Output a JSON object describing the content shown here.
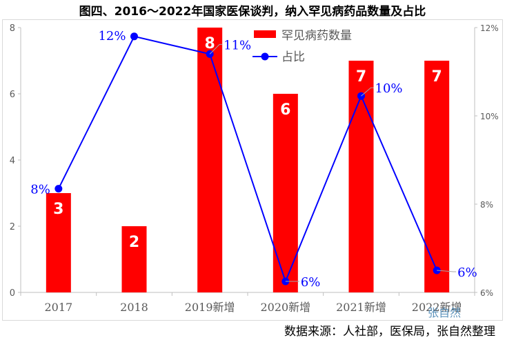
{
  "title": "图四、2016～2022年国家医保谈判，纳入罕见病药品数量及占比",
  "source": "数据来源：人社部，医保局，张自然整理",
  "watermark": "张自然",
  "chart_data": {
    "type": "bar",
    "categories": [
      "2017",
      "2018",
      "2019新增",
      "2020新增",
      "2021新增",
      "2022新增"
    ],
    "series": [
      {
        "name": "罕见病药数量",
        "type": "bar",
        "axis": "left",
        "color": "#ff0000",
        "values": [
          3,
          2,
          8,
          6,
          7,
          7
        ],
        "labels": [
          "3",
          "2",
          "8",
          "6",
          "7",
          "7"
        ]
      },
      {
        "name": "占比",
        "type": "line",
        "axis": "right",
        "color": "#0000ff",
        "values": [
          8.35,
          11.8,
          11.4,
          6.25,
          10.45,
          6.5
        ],
        "labels": [
          "8%",
          "12%",
          "11%",
          "6%",
          "10%",
          "6%"
        ]
      }
    ],
    "ylim": [
      0,
      8
    ],
    "y_ticks": [
      "0",
      "2",
      "4",
      "6",
      "8"
    ],
    "y2lim": [
      6,
      12
    ],
    "y2_ticks": [
      "6%",
      "8%",
      "10%",
      "12%"
    ],
    "grid": false,
    "legend": "top-right"
  }
}
